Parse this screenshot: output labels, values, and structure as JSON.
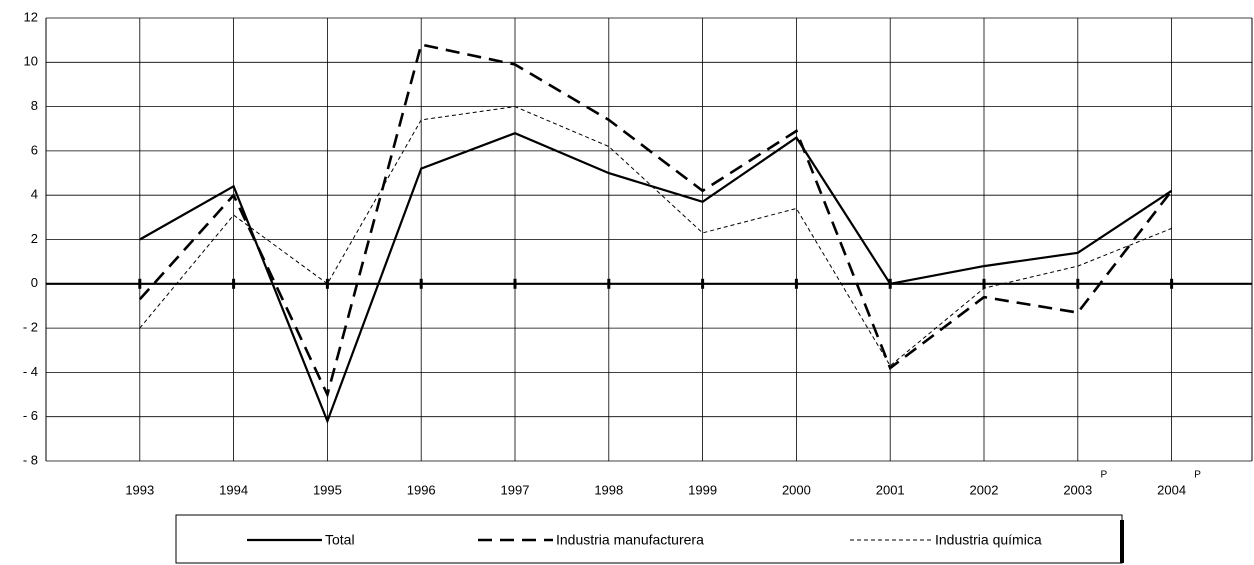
{
  "chart_data": {
    "type": "line",
    "categories": [
      "1993",
      "1994",
      "1995",
      "1996",
      "1997",
      "1998",
      "1999",
      "2000",
      "2001",
      "2002",
      "2003",
      "2004"
    ],
    "category_superscripts": [
      null,
      null,
      null,
      null,
      null,
      null,
      null,
      null,
      null,
      null,
      "P",
      "P"
    ],
    "series": [
      {
        "name": "Total",
        "color": "#000000",
        "values": [
          2.0,
          4.4,
          -6.2,
          5.2,
          6.8,
          5.0,
          3.7,
          6.6,
          0.0,
          0.8,
          1.4,
          4.2
        ]
      },
      {
        "name": "Industria manufacturera",
        "color": "#000000",
        "values": [
          -0.7,
          4.0,
          -5.0,
          10.8,
          9.9,
          7.4,
          4.2,
          6.9,
          -3.8,
          -0.6,
          -1.3,
          4.2
        ]
      },
      {
        "name": "Industria química",
        "color": "#000000",
        "values": [
          -2.0,
          3.1,
          0.0,
          7.4,
          8.0,
          6.2,
          2.3,
          3.4,
          -3.7,
          -0.2,
          0.8,
          2.5
        ]
      }
    ],
    "ylim": [
      -8,
      12
    ],
    "yticks": [
      {
        "value": -8,
        "label": "- 8"
      },
      {
        "value": -6,
        "label": "- 6"
      },
      {
        "value": -4,
        "label": "- 4"
      },
      {
        "value": -2,
        "label": "- 2"
      },
      0,
      2,
      4,
      6,
      8,
      10,
      12
    ],
    "grid": true,
    "legend": "bottom"
  }
}
